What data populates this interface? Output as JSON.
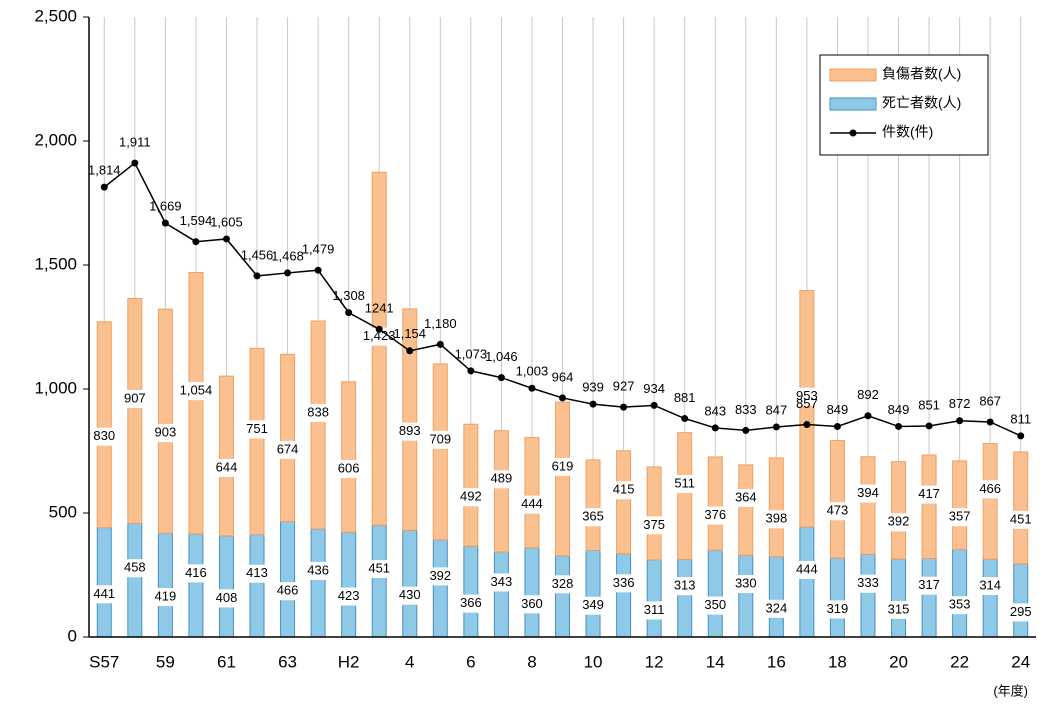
{
  "chart_data": {
    "type": "bar-line",
    "categories": [
      "S57",
      null,
      "59",
      null,
      "61",
      null,
      "63",
      null,
      "H2",
      null,
      "4",
      null,
      "6",
      null,
      "8",
      null,
      "10",
      null,
      "12",
      null,
      "14",
      null,
      "16",
      null,
      "18",
      null,
      "20",
      null,
      "22",
      null,
      "24"
    ],
    "xlabel": "(年度)",
    "series": [
      {
        "name": "負傷者数(人)",
        "kind": "bar",
        "color": "#fac090",
        "stroke": "#f0a060",
        "values": [
          830,
          907,
          903,
          1054,
          644,
          751,
          674,
          838,
          606,
          1423,
          893,
          709,
          492,
          489,
          444,
          619,
          365,
          415,
          375,
          511,
          376,
          364,
          398,
          953,
          473,
          394,
          392,
          417,
          357,
          466,
          451
        ],
        "value_labels": [
          "830",
          "907",
          "903",
          "1,054",
          "644",
          "751",
          "674",
          "838",
          "606",
          "1,423",
          "893",
          "709",
          "492",
          "489",
          "444",
          "619",
          "365",
          "415",
          "375",
          "511",
          "376",
          "364",
          "398",
          "953",
          "473",
          "394",
          "392",
          "417",
          "357",
          "466",
          "451"
        ]
      },
      {
        "name": "死亡者数(人)",
        "kind": "bar",
        "color": "#8ecae8",
        "stroke": "#4a8fc4",
        "values": [
          441,
          458,
          419,
          416,
          408,
          413,
          466,
          436,
          423,
          451,
          430,
          392,
          366,
          343,
          360,
          328,
          349,
          336,
          311,
          313,
          350,
          330,
          324,
          444,
          319,
          333,
          315,
          317,
          353,
          314,
          295
        ],
        "value_labels": [
          "441",
          "458",
          "419",
          "416",
          "408",
          "413",
          "466",
          "436",
          "423",
          "451",
          "430",
          "392",
          "366",
          "343",
          "360",
          "328",
          "349",
          "336",
          "311",
          "313",
          "350",
          "330",
          "324",
          "444",
          "319",
          "333",
          "315",
          "317",
          "353",
          "314",
          "295"
        ]
      },
      {
        "name": "件数(件)",
        "kind": "line",
        "color": "#000000",
        "values": [
          1814,
          1911,
          1669,
          1594,
          1605,
          1456,
          1468,
          1479,
          1308,
          1241,
          1154,
          1180,
          1073,
          1046,
          1003,
          964,
          939,
          927,
          934,
          881,
          843,
          833,
          847,
          857,
          849,
          892,
          849,
          851,
          872,
          867,
          811
        ],
        "value_labels": [
          "1,814",
          "1,911",
          "1,669",
          "1,594",
          "1,605",
          "1,456",
          "1,468",
          "1,479",
          "1,308",
          "1241",
          "1,154",
          "1,180",
          "1,073",
          "1,046",
          "1,003",
          "964",
          "939",
          "927",
          "934",
          "881",
          "843",
          "833",
          "847",
          "857",
          "849",
          "892",
          "849",
          "851",
          "872",
          "867",
          "811"
        ]
      }
    ],
    "ylim": [
      0,
      2500
    ],
    "yticks": [
      0,
      500,
      {
        "value": 1000,
        "label": "1,000"
      },
      {
        "value": 1500,
        "label": "1,500"
      },
      {
        "value": 2000,
        "label": "2,000"
      },
      {
        "value": 2500,
        "label": "2,500"
      }
    ],
    "grid": "x",
    "legend": "upper right"
  }
}
